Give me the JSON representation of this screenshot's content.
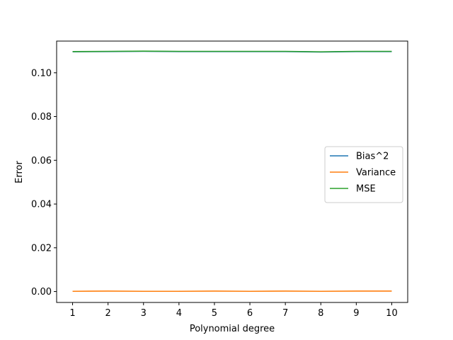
{
  "chart_data": {
    "type": "line",
    "xlabel": "Polynomial degree",
    "ylabel": "Error",
    "x": [
      1,
      2,
      3,
      4,
      5,
      6,
      7,
      8,
      9,
      10
    ],
    "xticks": [
      "1",
      "2",
      "3",
      "4",
      "5",
      "6",
      "7",
      "8",
      "9",
      "10"
    ],
    "yticks": [
      "0.00",
      "0.02",
      "0.04",
      "0.06",
      "0.08",
      "0.10"
    ],
    "ylim": [
      -0.005,
      0.1145
    ],
    "xlim": [
      0.55,
      10.45
    ],
    "grid": false,
    "legend_position": "center-right",
    "series": [
      {
        "name": "Bias^2",
        "color": "#1f77b4",
        "values": [
          0.1096,
          0.1097,
          0.1098,
          0.1097,
          0.1097,
          0.1097,
          0.1097,
          0.1095,
          0.1097,
          0.1097
        ]
      },
      {
        "name": "Variance",
        "color": "#ff7f0e",
        "values": [
          0.0001,
          0.0002,
          0.0001,
          0.0001,
          0.0002,
          0.0001,
          0.0002,
          0.0001,
          0.0002,
          0.0002
        ]
      },
      {
        "name": "MSE",
        "color": "#2ca02c",
        "values": [
          0.1097,
          0.1098,
          0.1099,
          0.1098,
          0.1098,
          0.1098,
          0.1098,
          0.1096,
          0.1098,
          0.1098
        ]
      }
    ]
  }
}
